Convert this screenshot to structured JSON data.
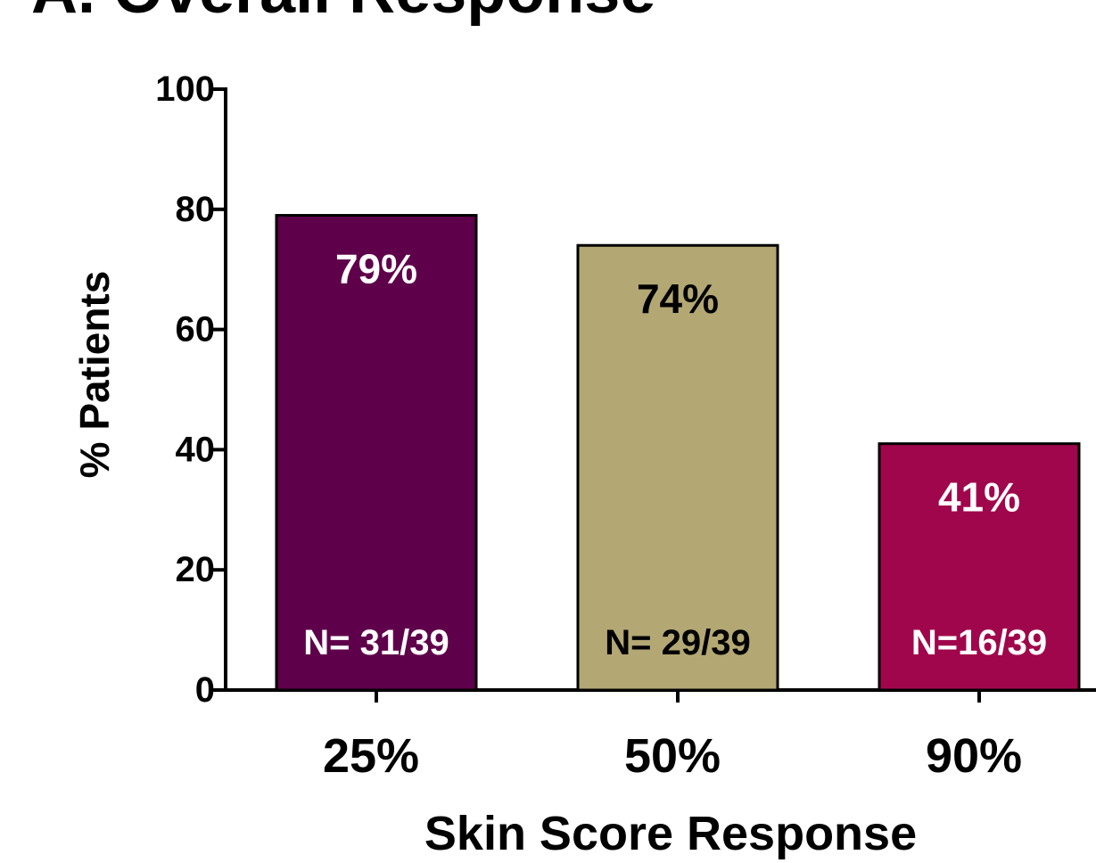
{
  "chart_data": {
    "type": "bar",
    "title": "A. Overall Response",
    "x_label": "Skin Score Response",
    "y_label": "% Patients",
    "categories": [
      "25%",
      "50%",
      "90%"
    ],
    "values": [
      79,
      74,
      41
    ],
    "value_labels": [
      "79%",
      "74%",
      "41%"
    ],
    "annotations": [
      "N= 31/39",
      "N= 29/39",
      "N=16/39"
    ],
    "colors": [
      "#5f004b",
      "#b3a774",
      "#a0064b"
    ],
    "ylim": [
      0,
      100
    ],
    "yticks": [
      0,
      20,
      40,
      60,
      80,
      100
    ],
    "grid": false
  }
}
